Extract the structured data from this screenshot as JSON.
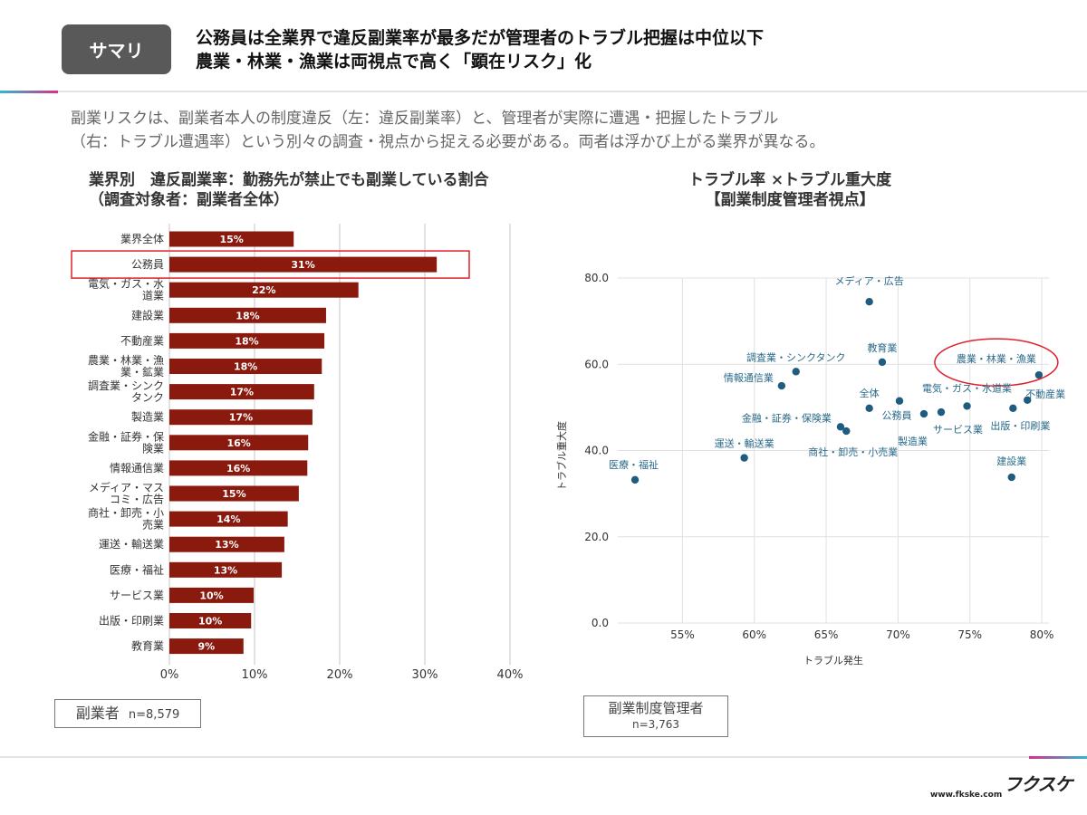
{
  "header": {
    "badge": "サマリ",
    "headline_line1": "公務員は全業界で違反副業率が最多だが管理者のトラブル把握は中位以下",
    "headline_line2": "農業・林業・漁業は両視点で高く「顕在リスク」化"
  },
  "intro": {
    "line1": "副業リスクは、副業者本人の制度違反（左：違反副業率）と、管理者が実際に遭遇・把握したトラブル",
    "line2": "（右：トラブル遭遇率）という別々の調査・視点から捉える必要がある。両者は浮かび上がる業界が異なる。"
  },
  "left_chart": {
    "title_line1": "業界別　違反副業率：勤務先が禁止でも副業している割合",
    "title_line2": "（調査対象者：副業者全体）",
    "sample_label": "副業者",
    "sample_n": "n=8,579"
  },
  "right_chart": {
    "title_line1": "トラブル率 ×トラブル重大度",
    "title_line2": "【副業制度管理者視点】",
    "sample_label": "副業制度管理者",
    "sample_n": "n=3,763"
  },
  "colors": {
    "bar": "#8b1a0e",
    "dot": "#1f5c80",
    "label": "#2a6a8a",
    "highlight": "#e0202a"
  },
  "chart_data": [
    {
      "type": "bar",
      "orientation": "horizontal",
      "categories": [
        "業界全体",
        "公務員",
        "電気・ガス・水道業",
        "建設業",
        "不動産業",
        "農業・林業・漁業・鉱業",
        "調査業・シンクタンク",
        "製造業",
        "金融・証券・保険業",
        "情報通信業",
        "メディア・マスコミ・広告",
        "商社・卸売・小売業",
        "運送・輸送業",
        "医療・福祉",
        "サービス業",
        "出版・印刷業",
        "教育業"
      ],
      "category_label_lines": [
        [
          "業界全体"
        ],
        [
          "公務員"
        ],
        [
          "電気・ガス・水",
          "道業"
        ],
        [
          "建設業"
        ],
        [
          "不動産業"
        ],
        [
          "農業・林業・漁",
          "業・鉱業"
        ],
        [
          "調査業・シンク",
          "タンク"
        ],
        [
          "製造業"
        ],
        [
          "金融・証券・保",
          "険業"
        ],
        [
          "情報通信業"
        ],
        [
          "メディア・マス",
          "コミ・広告"
        ],
        [
          "商社・卸売・小",
          "売業"
        ],
        [
          "運送・輸送業"
        ],
        [
          "医療・福祉"
        ],
        [
          "サービス業"
        ],
        [
          "出版・印刷業"
        ],
        [
          "教育業"
        ]
      ],
      "values": [
        14.6,
        31.4,
        22.2,
        18.4,
        18.2,
        17.9,
        17.0,
        16.8,
        16.3,
        16.2,
        15.2,
        13.9,
        13.5,
        13.2,
        9.9,
        9.6,
        8.7
      ],
      "data_labels": [
        "15%",
        "31%",
        "22%",
        "18%",
        "18%",
        "18%",
        "17%",
        "17%",
        "16%",
        "16%",
        "15%",
        "14%",
        "13%",
        "13%",
        "10%",
        "10%",
        "9%"
      ],
      "xlim": [
        0,
        40
      ],
      "x_ticks": [
        0,
        10,
        20,
        30,
        40
      ],
      "x_tick_labels": [
        "0%",
        "10%",
        "20%",
        "30%",
        "40%"
      ],
      "grid": "vertical",
      "highlight_category": "公務員"
    },
    {
      "type": "scatter",
      "xlabel": "トラブル発生",
      "ylabel": "トラブル重大度",
      "xlim": [
        50.5,
        80.5
      ],
      "ylim": [
        0,
        80
      ],
      "x_ticks": [
        55,
        60,
        65,
        70,
        75,
        80
      ],
      "x_tick_labels": [
        "55%",
        "60%",
        "65%",
        "70%",
        "75%",
        "80%"
      ],
      "y_ticks": [
        0,
        20,
        40,
        60,
        80
      ],
      "y_tick_labels": [
        "0.0",
        "20.0",
        "40.0",
        "60.0",
        "80.0"
      ],
      "grid": "both",
      "points": [
        {
          "label": "メディア・広告",
          "x": 68.0,
          "y": 74.5
        },
        {
          "label": "教育業",
          "x": 68.9,
          "y": 60.5
        },
        {
          "label": "調査業・シンクタンク",
          "x": 62.9,
          "y": 58.3
        },
        {
          "label": "情報通信業",
          "x": 61.9,
          "y": 55.0
        },
        {
          "label": "農業・林業・漁業",
          "x": 79.8,
          "y": 57.5
        },
        {
          "label": "不動産業",
          "x": 79.0,
          "y": 51.7
        },
        {
          "label": "電気・ガス・水道業",
          "x": 74.8,
          "y": 50.3
        },
        {
          "label": "出版・印刷業",
          "x": 78.0,
          "y": 49.8
        },
        {
          "label": "全体",
          "x": 68.0,
          "y": 49.8
        },
        {
          "label": "公務員",
          "x": 70.1,
          "y": 51.5
        },
        {
          "label": "製造業",
          "x": 71.8,
          "y": 48.5
        },
        {
          "label": "サービス業",
          "x": 73.0,
          "y": 48.9
        },
        {
          "label": "金融・証券・保険業",
          "x": 66.0,
          "y": 45.5
        },
        {
          "label": "商社・卸売・小売業",
          "x": 66.4,
          "y": 44.5
        },
        {
          "label": "運送・輸送業",
          "x": 59.3,
          "y": 38.3
        },
        {
          "label": "医療・福祉",
          "x": 51.7,
          "y": 33.2
        },
        {
          "label": "建設業",
          "x": 77.9,
          "y": 33.8
        }
      ],
      "highlight_point": "農業・林業・漁業"
    }
  ],
  "footer": {
    "logo": "フクスケ",
    "url": "www.fkske.com"
  }
}
